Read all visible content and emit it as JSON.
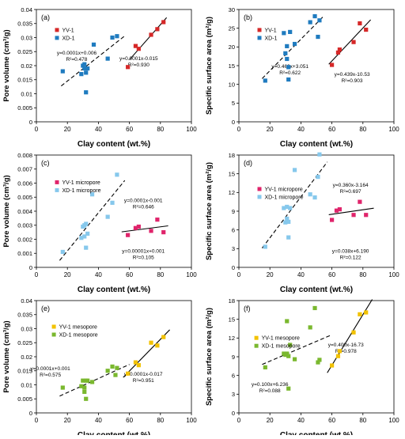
{
  "colors": {
    "yv_mixed": "#d62828",
    "xd_mixed": "#1f7bbf",
    "yv_micro": "#e0246b",
    "xd_micro": "#86c8ec",
    "yv_meso": "#f2c200",
    "xd_meso": "#7ab82e",
    "line": "#000000"
  },
  "chart_data": [
    {
      "type": "scatter",
      "panel_label": "(a)",
      "xlabel": "Clay content (wt.%)",
      "ylabel": "Pore volume (cm³/g)",
      "xlim": [
        0,
        100
      ],
      "ylim": [
        0,
        0.04
      ],
      "xticks": [
        "0",
        "20",
        "40",
        "60",
        "80",
        "100"
      ],
      "yticks": [
        "0",
        "0.005",
        "0.01",
        "0.015",
        "0.02",
        "0.025",
        "0.03",
        "0.035",
        "0.04"
      ],
      "legend_position": "top-left",
      "series": [
        {
          "name": "YV-1",
          "color_key": "yv_mixed",
          "x": [
            59,
            64,
            66,
            74,
            78,
            82
          ],
          "y": [
            0.0195,
            0.027,
            0.026,
            0.031,
            0.033,
            0.0355
          ]
        },
        {
          "name": "XD-1",
          "color_key": "xd_mixed",
          "x": [
            17,
            29,
            30,
            31,
            31,
            32,
            32,
            33,
            37,
            46,
            49,
            52
          ],
          "y": [
            0.018,
            0.017,
            0.02,
            0.0205,
            0.019,
            0.0105,
            0.0175,
            0.019,
            0.0275,
            0.0225,
            0.03,
            0.0305
          ]
        }
      ],
      "trendlines": [
        {
          "series": "XD-1",
          "style": "dashed",
          "x_range": [
            16,
            57
          ],
          "equation": "y=0.0001x+0.006",
          "r2": "R²=0.478",
          "anchor": "left"
        },
        {
          "series": "YV-1",
          "style": "solid",
          "x_range": [
            60,
            84
          ],
          "equation": "y=0.0001x-0.015",
          "r2": "R²=0.930",
          "anchor": "right"
        }
      ]
    },
    {
      "type": "scatter",
      "panel_label": "(b)",
      "xlabel": "Clay content (wt.%)",
      "ylabel": "Specific surface area (m²/g)",
      "xlim": [
        0,
        100
      ],
      "ylim": [
        0,
        30
      ],
      "xticks": [
        "0",
        "20",
        "40",
        "60",
        "80",
        "100"
      ],
      "yticks": [
        "0",
        "5",
        "10",
        "15",
        "20",
        "25",
        "30"
      ],
      "legend_position": "top-left",
      "series": [
        {
          "name": "YV-1",
          "color_key": "yv_mixed",
          "x": [
            60,
            64,
            65,
            74,
            78,
            82
          ],
          "y": [
            15.2,
            18.5,
            19.3,
            21.3,
            26.3,
            24.6
          ]
        },
        {
          "name": "XD-1",
          "color_key": "xd_mixed",
          "x": [
            17,
            29,
            30,
            31,
            31,
            32,
            32,
            33,
            36,
            46,
            49,
            51,
            52
          ],
          "y": [
            11,
            23.7,
            18.3,
            16.8,
            20.2,
            11.3,
            14.6,
            24,
            20.8,
            26.6,
            28.2,
            22.7,
            27.1
          ]
        }
      ],
      "trendlines": [
        {
          "series": "XD-1",
          "style": "dashed",
          "x_range": [
            15,
            55
          ],
          "equation": "y=0.460x+3.051",
          "r2": "R²=0.622",
          "anchor": "left"
        },
        {
          "series": "YV-1",
          "style": "solid",
          "x_range": [
            58,
            85
          ],
          "equation": "y=0.439x-10.53",
          "r2": "R²=0.903",
          "anchor": "right"
        }
      ]
    },
    {
      "type": "scatter",
      "panel_label": "(c)",
      "xlabel": "Clay content (wt.%)",
      "ylabel": "Pore volume (cm³/g)",
      "xlim": [
        0,
        100
      ],
      "ylim": [
        0,
        0.008
      ],
      "xticks": [
        "0",
        "20",
        "40",
        "60",
        "80",
        "100"
      ],
      "yticks": [
        "0",
        "0.001",
        "0.002",
        "0.003",
        "0.004",
        "0.005",
        "0.006",
        "0.007",
        "0.008"
      ],
      "legend_position": "top-left",
      "series": [
        {
          "name": "YV-1 micropore",
          "color_key": "yv_micro",
          "x": [
            59,
            64,
            66,
            74,
            78,
            82
          ],
          "y": [
            0.0023,
            0.0028,
            0.0029,
            0.0026,
            0.0034,
            0.0025
          ]
        },
        {
          "name": "XD-1 micropore",
          "color_key": "xd_micro",
          "x": [
            17,
            29,
            30,
            31,
            31,
            32,
            32,
            33,
            36,
            46,
            49,
            52
          ],
          "y": [
            0.0011,
            0.0021,
            0.0029,
            0.0022,
            0.003,
            0.0014,
            0.0031,
            0.0024,
            0.0052,
            0.0036,
            0.0046,
            0.0066
          ]
        }
      ],
      "trendlines": [
        {
          "series": "XD-1 micropore",
          "style": "dashed",
          "x_range": [
            15,
            57
          ],
          "equation": "y=0.0001x-0.001",
          "r2": "R²=0.646",
          "anchor": "right"
        },
        {
          "series": "YV-1 micropore",
          "style": "solid",
          "x_range": [
            55,
            85
          ],
          "equation": "y=0.00001x+0.001",
          "r2": "R²=0.105",
          "anchor": "right"
        }
      ]
    },
    {
      "type": "scatter",
      "panel_label": "(d)",
      "xlabel": "Clay content (wt.%)",
      "ylabel": "Specific surface area (m²/g)",
      "xlim": [
        0,
        100
      ],
      "ylim": [
        0,
        18
      ],
      "xticks": [
        "0",
        "20",
        "40",
        "60",
        "80",
        "100"
      ],
      "yticks": [
        "0",
        "3",
        "6",
        "9",
        "12",
        "15",
        "18"
      ],
      "legend_position": "top-left",
      "series": [
        {
          "name": "YV-1 micropore",
          "color_key": "yv_micro",
          "x": [
            60,
            63,
            65,
            74,
            78,
            82
          ],
          "y": [
            7.6,
            9.1,
            9.3,
            8.4,
            10.5,
            8.4
          ]
        },
        {
          "name": "XD-1 micropore",
          "color_key": "xd_micro",
          "x": [
            17,
            29,
            30,
            31,
            31,
            32,
            32,
            33,
            36,
            46,
            49,
            51,
            52
          ],
          "y": [
            3.3,
            9.5,
            7.2,
            7.8,
            9.7,
            4.8,
            7.3,
            9.5,
            15.6,
            11.7,
            11.2,
            14.5,
            18.1
          ]
        }
      ],
      "trendlines": [
        {
          "series": "XD-1 micropore",
          "style": "dashed",
          "x_range": [
            15,
            57
          ],
          "equation": "y=0.360x-3.164",
          "r2": "R²=0.697",
          "anchor": "right"
        },
        {
          "series": "YV-1 micropore",
          "style": "solid",
          "x_range": [
            58,
            87
          ],
          "equation": "y=0.038x+6.190",
          "r2": "R²=0.122",
          "anchor": "right"
        }
      ]
    },
    {
      "type": "scatter",
      "panel_label": "(e)",
      "xlabel": "Clay content (wt.%)",
      "ylabel": "Pore volume (cm³/g)",
      "xlim": [
        0,
        100
      ],
      "ylim": [
        0,
        0.04
      ],
      "xticks": [
        "0",
        "20",
        "40",
        "60",
        "80",
        "100"
      ],
      "yticks": [
        "0",
        "0.005",
        "0.01",
        "0.015",
        "0.02",
        "0.025",
        "0.03",
        "0.035",
        "0.04"
      ],
      "legend_position": "top-left",
      "series": [
        {
          "name": "YV-1 mesopore",
          "color_key": "yv_meso",
          "x": [
            59,
            64,
            66,
            74,
            78,
            82
          ],
          "y": [
            0.014,
            0.018,
            0.017,
            0.025,
            0.024,
            0.027
          ]
        },
        {
          "name": "XD-1 mesopore",
          "color_key": "xd_meso",
          "x": [
            17,
            29,
            30,
            31,
            31,
            32,
            32,
            33,
            36,
            46,
            49,
            51,
            52
          ],
          "y": [
            0.009,
            0.0095,
            0.0115,
            0.009,
            0.0075,
            0.005,
            0.0115,
            0.0115,
            0.011,
            0.015,
            0.0165,
            0.0135,
            0.016
          ]
        }
      ],
      "trendlines": [
        {
          "series": "XD-1 mesopore",
          "style": "dashed",
          "x_range": [
            15,
            60
          ],
          "equation": "y=0.0001x+0.001",
          "r2": "R²=0.575",
          "anchor": "left"
        },
        {
          "series": "YV-1 mesopore",
          "style": "solid",
          "x_range": [
            56,
            86
          ],
          "equation": "y=0.0001x-0.017",
          "r2": "R²=0.951",
          "anchor": "right"
        }
      ]
    },
    {
      "type": "scatter",
      "panel_label": "(f)",
      "xlabel": "Clay content (wt.%)",
      "ylabel": "Specific surface area (m²/g)",
      "xlim": [
        0,
        100
      ],
      "ylim": [
        0,
        18
      ],
      "xticks": [
        "0",
        "20",
        "40",
        "60",
        "80",
        "100"
      ],
      "yticks": [
        "0",
        "3",
        "6",
        "9",
        "12",
        "15",
        "18"
      ],
      "legend_position": "top-left",
      "series": [
        {
          "name": "YV-1 mesopore",
          "color_key": "yv_meso",
          "x": [
            60,
            64,
            65,
            74,
            78,
            82
          ],
          "y": [
            7.6,
            9.1,
            9.9,
            12.9,
            15.8,
            16.1
          ]
        },
        {
          "name": "XD-1 mesopore",
          "color_key": "xd_meso",
          "x": [
            17,
            29,
            30,
            31,
            31,
            32,
            32,
            33,
            36,
            46,
            49,
            51,
            52
          ],
          "y": [
            7.3,
            9.5,
            9.3,
            9.5,
            14.7,
            3.9,
            9.1,
            10.9,
            8.6,
            13.7,
            16.8,
            8.1,
            8.5
          ]
        }
      ],
      "trendlines": [
        {
          "series": "XD-1 mesopore",
          "style": "dashed",
          "x_range": [
            15,
            60
          ],
          "equation": "y=0.100x+6.236",
          "r2": "R²=0.088",
          "anchor": "left"
        },
        {
          "series": "YV-1 mesopore",
          "style": "solid",
          "x_range": [
            57,
            86
          ],
          "equation": "y=0.400x-16.73",
          "r2": "R²=0.978",
          "anchor": "right"
        }
      ]
    }
  ]
}
